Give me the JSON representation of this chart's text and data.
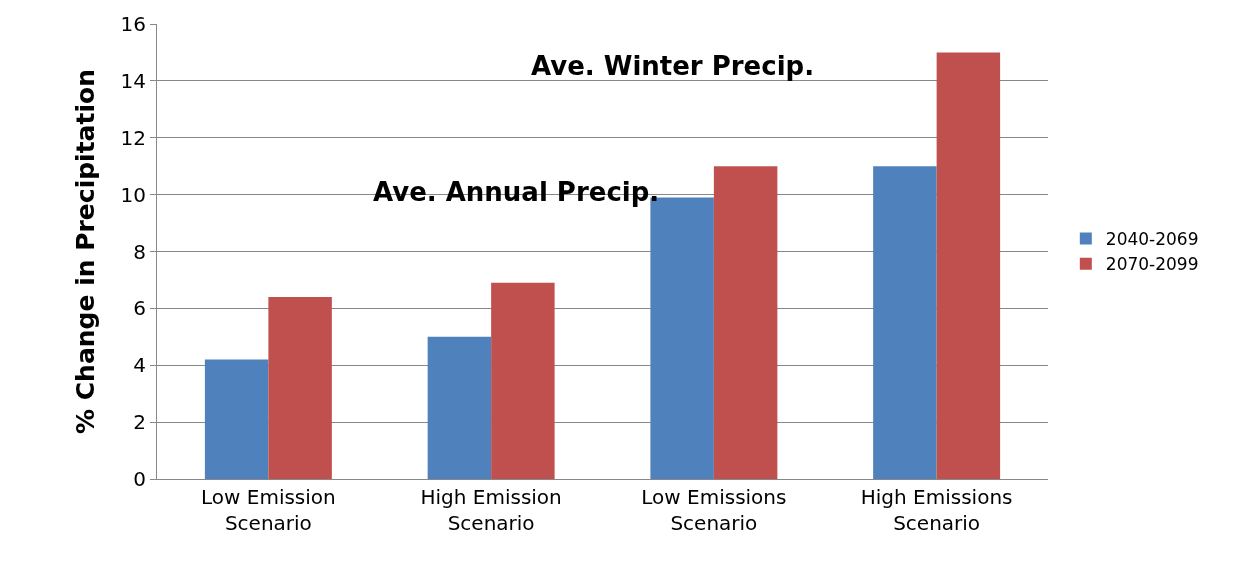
{
  "chart_data": {
    "type": "bar",
    "ylabel": "% Change in Precipitation",
    "categories": [
      "Low Emission Scenario",
      "High Emission Scenario",
      "Low Emissions Scenario",
      "High Emissions Scenario"
    ],
    "series": [
      {
        "name": "2040-2069",
        "color": "#4f81bd",
        "values": [
          4.2,
          5.0,
          9.9,
          11.0
        ]
      },
      {
        "name": "2070-2099",
        "color": "#c0504d",
        "values": [
          6.4,
          6.9,
          11.0,
          15.0
        ]
      }
    ],
    "ylim": [
      0,
      16
    ],
    "yticks": [
      0,
      2,
      4,
      6,
      8,
      10,
      12,
      14,
      16
    ],
    "grid": "y",
    "legend": "right",
    "annotations": [
      "Ave. Annual Precip.",
      "Ave. Winter Precip."
    ]
  }
}
